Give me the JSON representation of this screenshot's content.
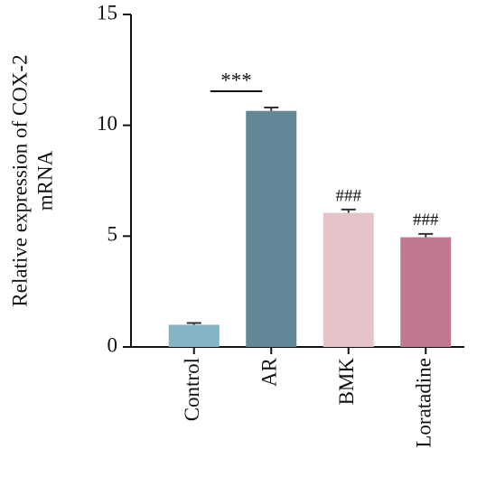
{
  "chart_data": {
    "type": "bar",
    "ylabel": [
      "Relative expression of COX-2",
      "mRNA"
    ],
    "categories": [
      "Control",
      "AR",
      "BMK",
      "Loratadine"
    ],
    "values": [
      1.0,
      10.65,
      6.05,
      4.95
    ],
    "errors": [
      0.08,
      0.15,
      0.15,
      0.15
    ],
    "colors": [
      "#84b3c4",
      "#628796",
      "#e5c3c9",
      "#c0788e"
    ],
    "ylim": [
      0,
      15
    ],
    "yticks": [
      0,
      5,
      10,
      15
    ],
    "annotations": [
      {
        "text": "***",
        "category": "AR"
      },
      {
        "text": "###",
        "category": "BMK"
      },
      {
        "text": "###",
        "category": "Loratadine"
      }
    ]
  }
}
